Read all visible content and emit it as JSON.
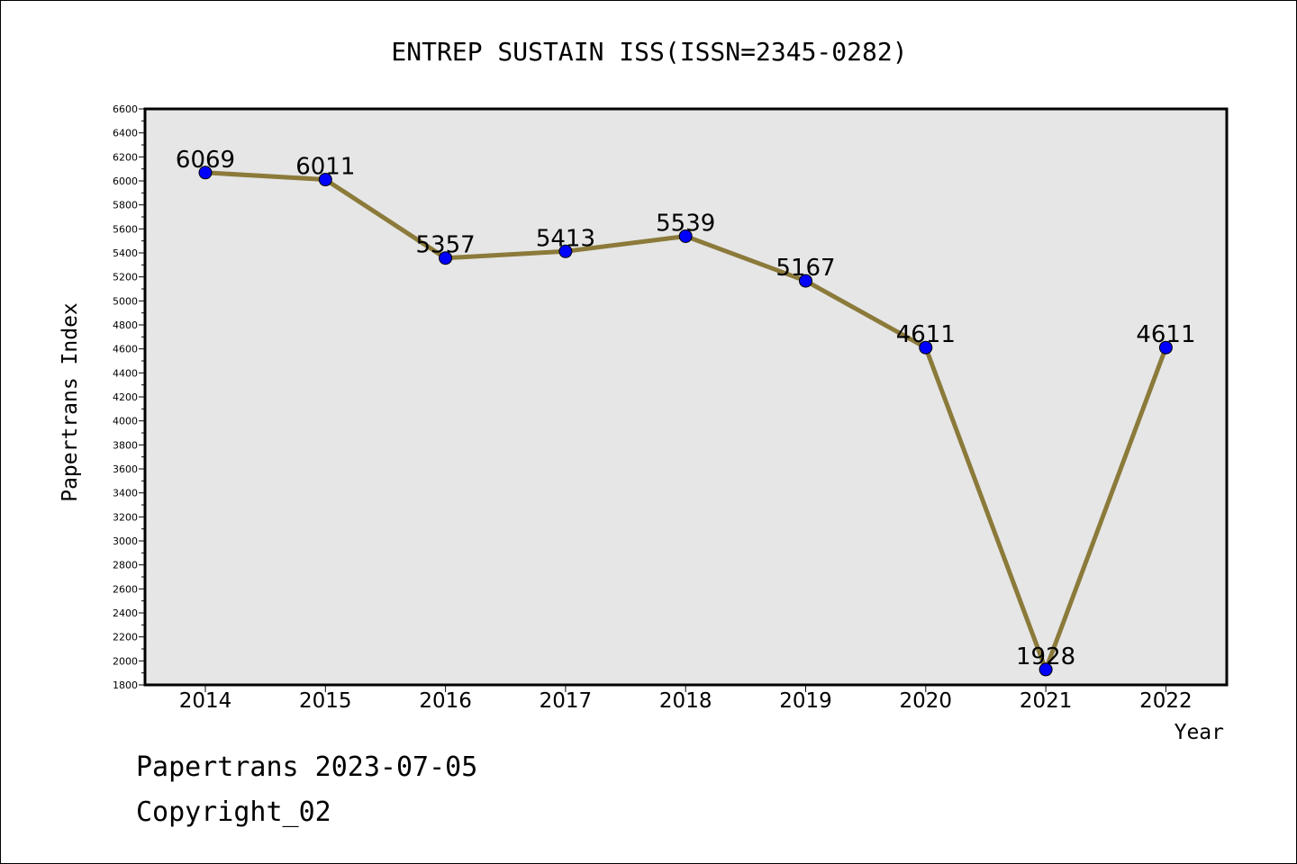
{
  "chart_data": {
    "type": "line",
    "title": "ENTREP SUSTAIN ISS(ISSN=2345-0282)",
    "xlabel": "Year",
    "ylabel": "Papertrans Index",
    "categories": [
      "2014",
      "2015",
      "2016",
      "2017",
      "2018",
      "2019",
      "2020",
      "2021",
      "2022"
    ],
    "series": [
      {
        "values": [
          6069,
          6011,
          5357,
          5413,
          5539,
          5167,
          4611,
          1928,
          4611
        ],
        "data_labels": [
          "6069",
          "6011",
          "5357",
          "5413",
          "5539",
          "5167",
          "4611",
          "1928",
          "4611"
        ]
      }
    ],
    "ylim": [
      1800,
      6600
    ],
    "yticks": [
      "1800",
      "2000",
      "2200",
      "2400",
      "2600",
      "2800",
      "3000",
      "3200",
      "3400",
      "3600",
      "3800",
      "4000",
      "4200",
      "4400",
      "4600",
      "4800",
      "5000",
      "5200",
      "5400",
      "5600",
      "5800",
      "6000",
      "6200",
      "6400",
      "6600"
    ],
    "grid": false,
    "legend": "none",
    "colors": {
      "line": "#8b7a3a",
      "marker": "#0000ff",
      "plot_background": "#e6e6e6"
    }
  },
  "footer": {
    "line1": "Papertrans 2023-07-05",
    "line2": "Copyright_02"
  }
}
